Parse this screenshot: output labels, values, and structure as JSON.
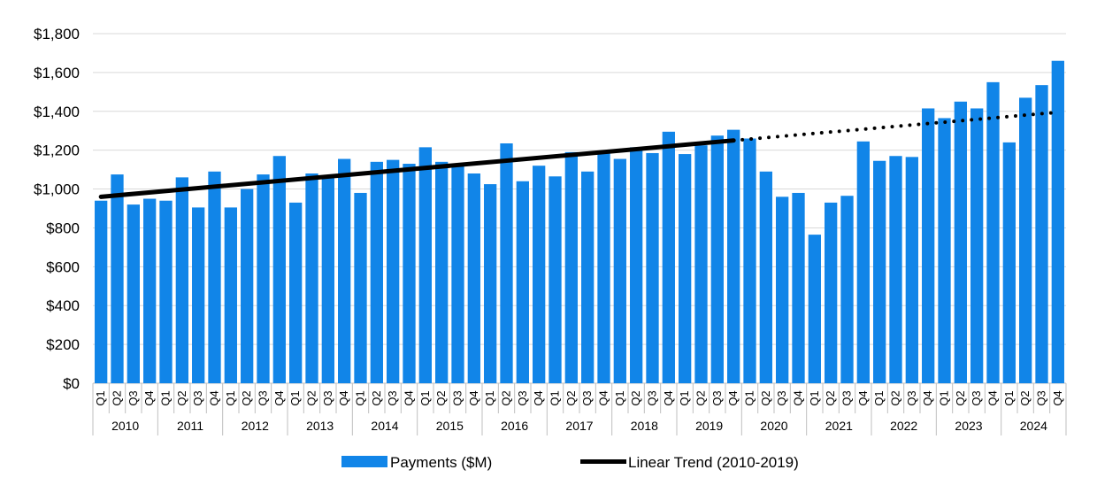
{
  "chart_data": {
    "type": "bar",
    "title": "",
    "xlabel": "",
    "ylabel": "",
    "ylim": [
      0,
      1800
    ],
    "yticks": [
      0,
      200,
      400,
      600,
      800,
      1000,
      1200,
      1400,
      1600,
      1800
    ],
    "ytick_labels": [
      "$0",
      "$200",
      "$400",
      "$600",
      "$800",
      "$1,000",
      "$1,200",
      "$1,400",
      "$1,600",
      "$1,800"
    ],
    "grid": "horizontal",
    "legend_position": "bottom",
    "years": [
      "2010",
      "2011",
      "2012",
      "2013",
      "2014",
      "2015",
      "2016",
      "2017",
      "2018",
      "2019",
      "2020",
      "2021",
      "2022",
      "2023",
      "2024"
    ],
    "quarters": [
      "Q1",
      "Q2",
      "Q3",
      "Q4"
    ],
    "series": [
      {
        "name": "Payments ($M)",
        "color": "#1185e8",
        "values": [
          940,
          1075,
          920,
          950,
          940,
          1060,
          905,
          1090,
          905,
          1000,
          1075,
          1170,
          930,
          1080,
          1060,
          1155,
          980,
          1140,
          1150,
          1130,
          1215,
          1140,
          1120,
          1080,
          1025,
          1235,
          1040,
          1120,
          1065,
          1190,
          1090,
          1195,
          1155,
          1215,
          1185,
          1295,
          1180,
          1225,
          1275,
          1305,
          1260,
          1090,
          960,
          980,
          765,
          930,
          965,
          1245,
          1145,
          1170,
          1165,
          1415,
          1365,
          1450,
          1415,
          1550,
          1240,
          1470,
          1535,
          1660
        ]
      },
      {
        "name": "Linear Trend (2010-2019)",
        "color": "#000000",
        "type": "line",
        "start": {
          "year": "2010",
          "quarter": "Q1",
          "value": 960
        },
        "end": {
          "year": "2019",
          "quarter": "Q4",
          "value": 1250
        },
        "projection": {
          "style": "dotted",
          "end": {
            "year": "2024",
            "quarter": "Q4",
            "value": 1395
          }
        }
      }
    ]
  }
}
